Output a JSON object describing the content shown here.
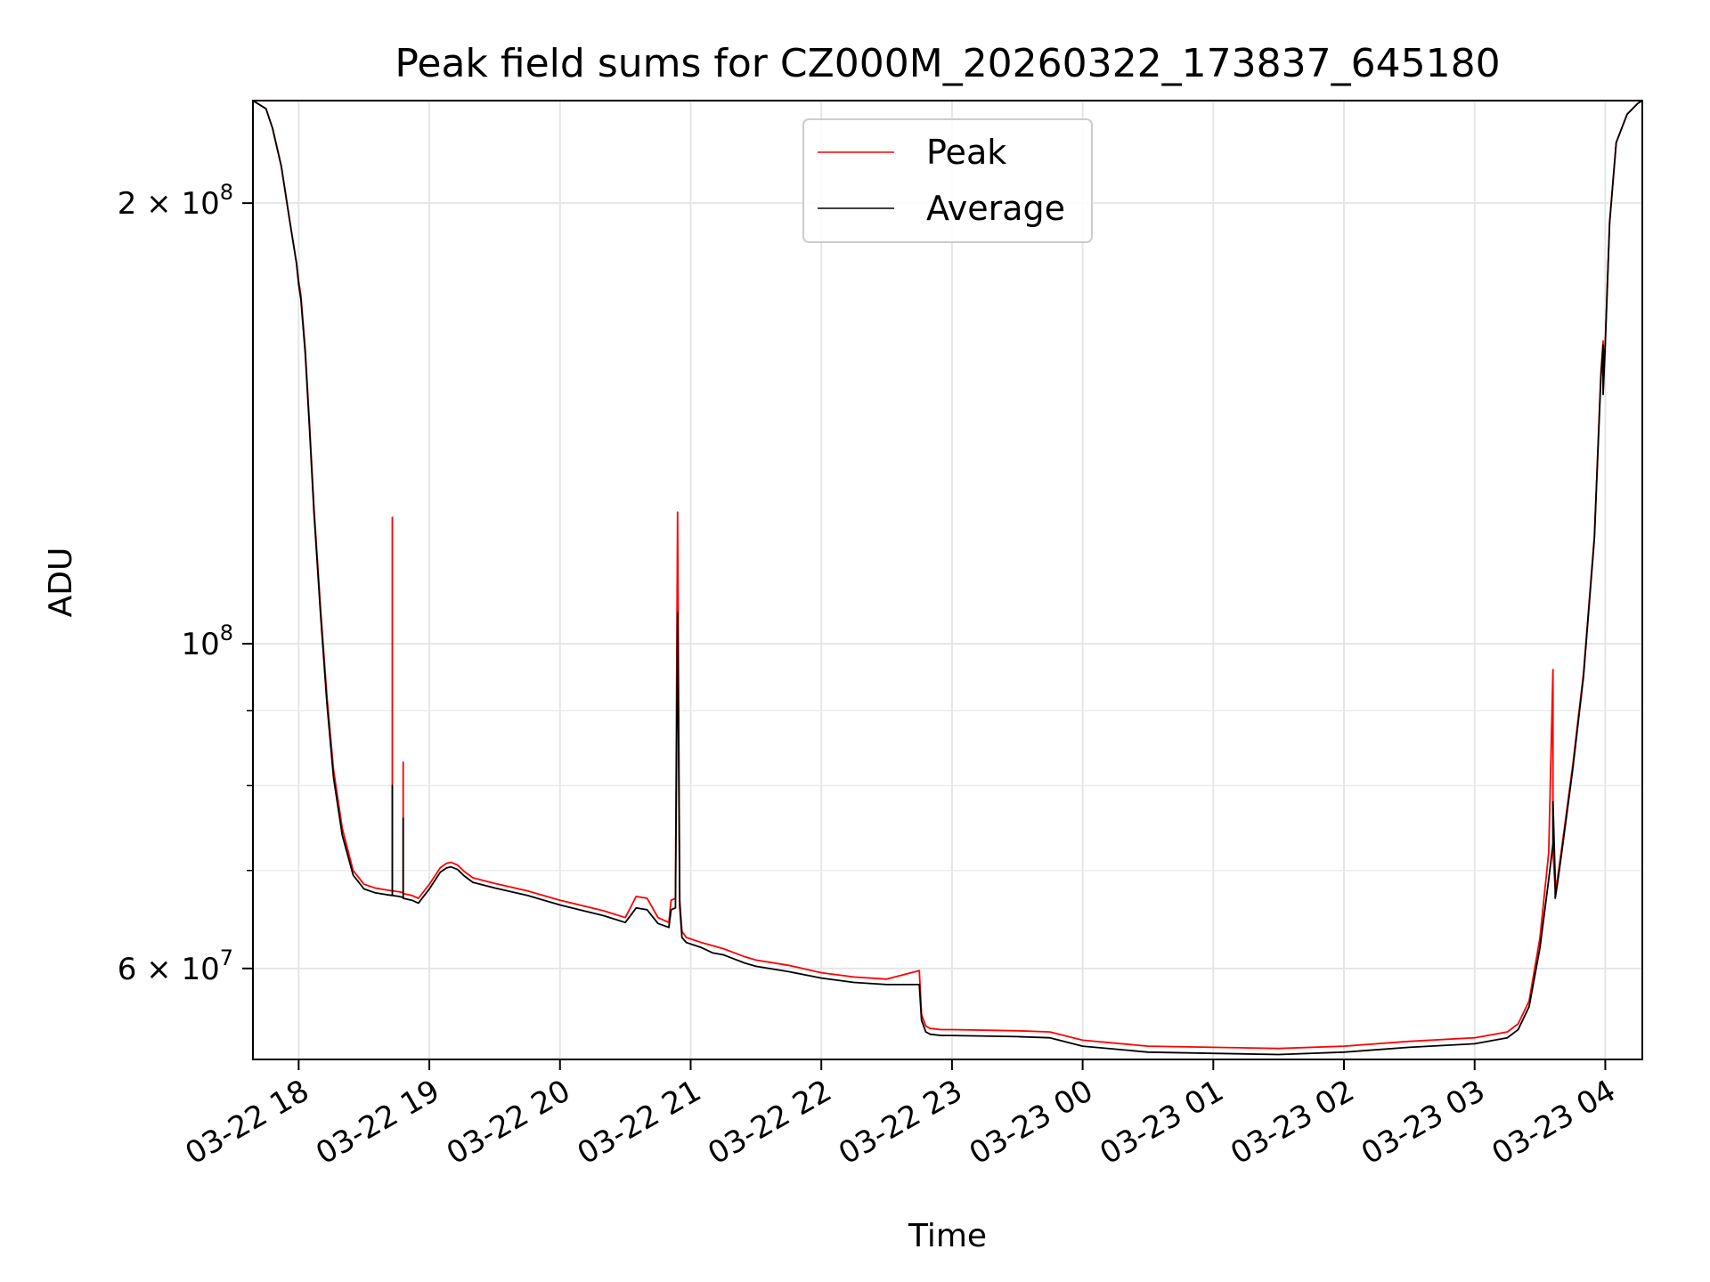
{
  "chart_data": {
    "type": "line",
    "title": "Peak field sums for CZ000M_20260322_173837_645180",
    "xlabel": "Time",
    "ylabel": "ADU",
    "y_scale": "log",
    "grid": true,
    "legend_position": "top-center",
    "xlim": [
      "2026-03-22 17:39",
      "2026-03-23 04:17"
    ],
    "ylim": [
      52000000,
      235000000
    ],
    "x_ticks": [
      {
        "value": "2026-03-22 18:00",
        "label": "03-22 18"
      },
      {
        "value": "2026-03-22 19:00",
        "label": "03-22 19"
      },
      {
        "value": "2026-03-22 20:00",
        "label": "03-22 20"
      },
      {
        "value": "2026-03-22 21:00",
        "label": "03-22 21"
      },
      {
        "value": "2026-03-22 22:00",
        "label": "03-22 22"
      },
      {
        "value": "2026-03-22 23:00",
        "label": "03-22 23"
      },
      {
        "value": "2026-03-23 00:00",
        "label": "03-23 00"
      },
      {
        "value": "2026-03-23 01:00",
        "label": "03-23 01"
      },
      {
        "value": "2026-03-23 02:00",
        "label": "03-23 02"
      },
      {
        "value": "2026-03-23 03:00",
        "label": "03-23 03"
      },
      {
        "value": "2026-03-23 04:00",
        "label": "03-23 04"
      }
    ],
    "y_major_ticks": [
      {
        "value": 60000000,
        "base": "6 × 10",
        "exp": "7"
      },
      {
        "value": 100000000,
        "base": "10",
        "exp": "8"
      },
      {
        "value": 200000000,
        "base": "2 × 10",
        "exp": "8"
      }
    ],
    "y_minor_gridlines": [
      70000000,
      80000000,
      90000000
    ],
    "series": [
      {
        "name": "Average",
        "color": "#000000",
        "x": [
          "2026-03-22 17:39",
          "2026-03-22 17:45",
          "2026-03-22 17:48",
          "2026-03-22 17:52",
          "2026-03-22 17:56",
          "2026-03-22 17:59",
          "2026-03-22 18:00",
          "2026-03-22 18:01",
          "2026-03-22 18:03",
          "2026-03-22 18:05",
          "2026-03-22 18:07",
          "2026-03-22 18:10",
          "2026-03-22 18:13",
          "2026-03-22 18:16",
          "2026-03-22 18:20",
          "2026-03-22 18:25",
          "2026-03-22 18:30",
          "2026-03-22 18:35",
          "2026-03-22 18:40",
          "2026-03-22 18:43",
          "2026-03-22 18:43",
          "2026-03-22 18:43",
          "2026-03-22 18:46",
          "2026-03-22 18:48",
          "2026-03-22 18:48",
          "2026-03-22 18:48",
          "2026-03-22 18:52",
          "2026-03-22 18:55",
          "2026-03-22 19:00",
          "2026-03-22 19:05",
          "2026-03-22 19:08",
          "2026-03-22 19:10",
          "2026-03-22 19:13",
          "2026-03-22 19:16",
          "2026-03-22 19:20",
          "2026-03-22 19:30",
          "2026-03-22 19:45",
          "2026-03-22 20:00",
          "2026-03-22 20:20",
          "2026-03-22 20:30",
          "2026-03-22 20:35",
          "2026-03-22 20:40",
          "2026-03-22 20:45",
          "2026-03-22 20:50",
          "2026-03-22 20:51",
          "2026-03-22 20:53",
          "2026-03-22 20:54",
          "2026-03-22 20:55",
          "2026-03-22 20:56",
          "2026-03-22 20:58",
          "2026-03-22 21:05",
          "2026-03-22 21:10",
          "2026-03-22 21:15",
          "2026-03-22 21:20",
          "2026-03-22 21:25",
          "2026-03-22 21:30",
          "2026-03-22 21:45",
          "2026-03-22 22:00",
          "2026-03-22 22:15",
          "2026-03-22 22:30",
          "2026-03-22 22:45",
          "2026-03-22 22:46",
          "2026-03-22 22:48",
          "2026-03-22 22:50",
          "2026-03-22 22:55",
          "2026-03-22 23:00",
          "2026-03-22 23:30",
          "2026-03-22 23:45",
          "2026-03-23 00:00",
          "2026-03-23 00:30",
          "2026-03-23 01:00",
          "2026-03-23 01:30",
          "2026-03-23 02:00",
          "2026-03-23 02:30",
          "2026-03-23 03:00",
          "2026-03-23 03:15",
          "2026-03-23 03:20",
          "2026-03-23 03:25",
          "2026-03-23 03:30",
          "2026-03-23 03:34",
          "2026-03-23 03:36",
          "2026-03-23 03:36",
          "2026-03-23 03:37",
          "2026-03-23 03:37",
          "2026-03-23 03:38",
          "2026-03-23 03:40",
          "2026-03-23 03:45",
          "2026-03-23 03:50",
          "2026-03-23 03:55",
          "2026-03-23 03:58",
          "2026-03-23 03:59",
          "2026-03-23 03:59",
          "2026-03-23 04:00",
          "2026-03-23 04:02",
          "2026-03-23 04:05",
          "2026-03-23 04:10",
          "2026-03-23 04:15",
          "2026-03-23 04:17"
        ],
        "y": [
          235000000,
          232000000,
          225000000,
          212000000,
          194000000,
          182000000,
          176000000,
          172000000,
          158000000,
          140000000,
          123000000,
          105000000,
          91000000,
          81000000,
          74000000,
          69500000,
          68000000,
          67600000,
          67400000,
          67300000,
          80000000,
          67300000,
          67200000,
          67100000,
          76000000,
          67000000,
          66800000,
          66500000,
          68000000,
          69800000,
          70300000,
          70400000,
          70100000,
          69400000,
          68700000,
          68100000,
          67300000,
          66300000,
          65200000,
          64500000,
          66000000,
          65800000,
          64400000,
          64000000,
          65800000,
          66000000,
          105000000,
          66200000,
          63000000,
          62500000,
          62000000,
          61500000,
          61300000,
          60900000,
          60500000,
          60200000,
          59700000,
          59100000,
          58700000,
          58500000,
          58500000,
          55300000,
          54300000,
          54100000,
          54000000,
          54000000,
          53900000,
          53800000,
          53100000,
          52600000,
          52500000,
          52400000,
          52600000,
          53000000,
          53300000,
          53800000,
          54500000,
          56500000,
          62000000,
          69000000,
          73000000,
          78000000,
          69000000,
          67000000,
          68500000,
          72000000,
          82000000,
          95000000,
          118000000,
          152000000,
          160000000,
          148000000,
          160000000,
          194000000,
          220000000,
          230000000,
          234000000,
          235000000
        ]
      },
      {
        "name": "Peak",
        "color": "#ff0000",
        "x": [
          "2026-03-22 17:39",
          "2026-03-22 17:45",
          "2026-03-22 17:48",
          "2026-03-22 17:52",
          "2026-03-22 17:56",
          "2026-03-22 17:59",
          "2026-03-22 18:00",
          "2026-03-22 18:01",
          "2026-03-22 18:03",
          "2026-03-22 18:05",
          "2026-03-22 18:07",
          "2026-03-22 18:10",
          "2026-03-22 18:13",
          "2026-03-22 18:16",
          "2026-03-22 18:20",
          "2026-03-22 18:25",
          "2026-03-22 18:30",
          "2026-03-22 18:35",
          "2026-03-22 18:40",
          "2026-03-22 18:43",
          "2026-03-22 18:43",
          "2026-03-22 18:43",
          "2026-03-22 18:46",
          "2026-03-22 18:48",
          "2026-03-22 18:48",
          "2026-03-22 18:48",
          "2026-03-22 18:52",
          "2026-03-22 18:55",
          "2026-03-22 19:00",
          "2026-03-22 19:05",
          "2026-03-22 19:08",
          "2026-03-22 19:10",
          "2026-03-22 19:13",
          "2026-03-22 19:16",
          "2026-03-22 19:20",
          "2026-03-22 19:30",
          "2026-03-22 19:45",
          "2026-03-22 20:00",
          "2026-03-22 20:20",
          "2026-03-22 20:30",
          "2026-03-22 20:35",
          "2026-03-22 20:40",
          "2026-03-22 20:45",
          "2026-03-22 20:50",
          "2026-03-22 20:51",
          "2026-03-22 20:53",
          "2026-03-22 20:54",
          "2026-03-22 20:55",
          "2026-03-22 20:56",
          "2026-03-22 20:58",
          "2026-03-22 21:05",
          "2026-03-22 21:10",
          "2026-03-22 21:15",
          "2026-03-22 21:20",
          "2026-03-22 21:25",
          "2026-03-22 21:30",
          "2026-03-22 21:45",
          "2026-03-22 22:00",
          "2026-03-22 22:15",
          "2026-03-22 22:30",
          "2026-03-22 22:45",
          "2026-03-22 22:46",
          "2026-03-22 22:48",
          "2026-03-22 22:50",
          "2026-03-22 22:55",
          "2026-03-22 23:00",
          "2026-03-22 23:30",
          "2026-03-22 23:45",
          "2026-03-23 00:00",
          "2026-03-23 00:30",
          "2026-03-23 01:00",
          "2026-03-23 01:30",
          "2026-03-23 02:00",
          "2026-03-23 02:30",
          "2026-03-23 03:00",
          "2026-03-23 03:15",
          "2026-03-23 03:20",
          "2026-03-23 03:25",
          "2026-03-23 03:30",
          "2026-03-23 03:34",
          "2026-03-23 03:36",
          "2026-03-23 03:36",
          "2026-03-23 03:37",
          "2026-03-23 03:37",
          "2026-03-23 03:38",
          "2026-03-23 03:40",
          "2026-03-23 03:45",
          "2026-03-23 03:50",
          "2026-03-23 03:55",
          "2026-03-23 03:58",
          "2026-03-23 03:59",
          "2026-03-23 03:59",
          "2026-03-23 04:00",
          "2026-03-23 04:02",
          "2026-03-23 04:05",
          "2026-03-23 04:10",
          "2026-03-23 04:15",
          "2026-03-23 04:17"
        ],
        "y": [
          235000000,
          232000000,
          225000000,
          212000000,
          194000000,
          182000000,
          177000000,
          173000000,
          159000000,
          141000000,
          124000000,
          106000000,
          92000000,
          82000000,
          74800000,
          70000000,
          68500000,
          68100000,
          67900000,
          67800000,
          122000000,
          67800000,
          67700000,
          67600000,
          83000000,
          67500000,
          67300000,
          67000000,
          68500000,
          70300000,
          70800000,
          70900000,
          70600000,
          69900000,
          69200000,
          68600000,
          67800000,
          66800000,
          65700000,
          65000000,
          67200000,
          67000000,
          65000000,
          64500000,
          66800000,
          67000000,
          123000000,
          66800000,
          63600000,
          63000000,
          62500000,
          62200000,
          61900000,
          61500000,
          61100000,
          60800000,
          60300000,
          59600000,
          59200000,
          59000000,
          59800000,
          55800000,
          54800000,
          54600000,
          54500000,
          54500000,
          54400000,
          54300000,
          53600000,
          53100000,
          53000000,
          52900000,
          53100000,
          53500000,
          53800000,
          54300000,
          55000000,
          57000000,
          63000000,
          72000000,
          96000000,
          72000000,
          68000000,
          68000000,
          69000000,
          72500000,
          82500000,
          95500000,
          118500000,
          153000000,
          161000000,
          149000000,
          161000000,
          194000000,
          220000000,
          230000000,
          234000000,
          235000000
        ]
      }
    ]
  }
}
